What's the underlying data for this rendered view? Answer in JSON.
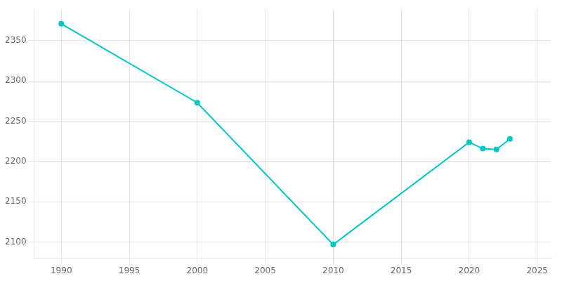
{
  "chart_data": {
    "type": "line",
    "x": [
      1990,
      2000,
      2010,
      2020,
      2021,
      2022,
      2023
    ],
    "values": [
      2371,
      2273,
      2097,
      2224,
      2216,
      2215,
      2228
    ],
    "color": "#00C8C8",
    "marker": "circle",
    "xlim": [
      1988,
      2026
    ],
    "ylim": [
      2080,
      2390
    ],
    "xticks": [
      1990,
      1995,
      2000,
      2005,
      2010,
      2015,
      2020,
      2025
    ],
    "yticks": [
      2100,
      2150,
      2200,
      2250,
      2300,
      2350
    ],
    "grid": true
  }
}
